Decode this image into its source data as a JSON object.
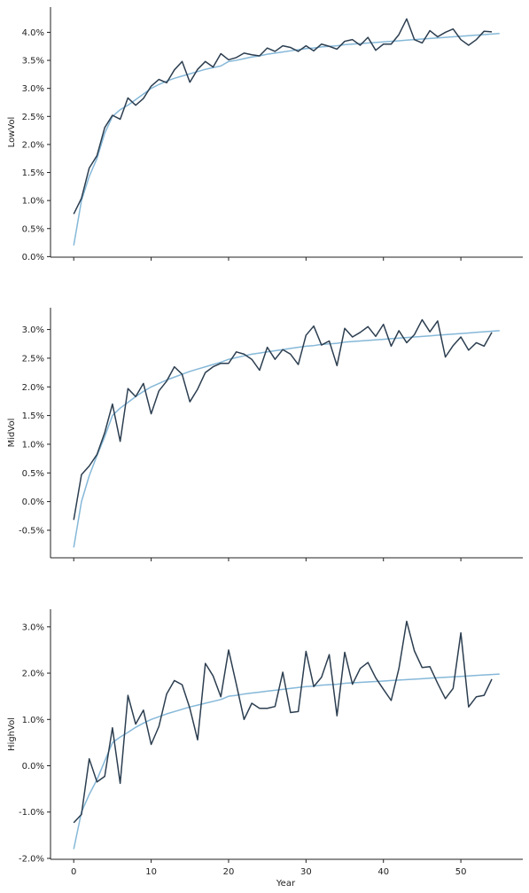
{
  "chart_data": [
    {
      "type": "line",
      "ylabel": "LowVol",
      "xlabel": "",
      "xlim": [
        -3,
        58
      ],
      "ylim": [
        -0.0001,
        0.0445
      ],
      "xticks": [
        0,
        10,
        20,
        30,
        40,
        50
      ],
      "yticks": [
        0.0,
        0.005,
        0.01,
        0.015,
        0.02,
        0.025,
        0.03,
        0.035,
        0.04
      ],
      "ytick_labels": [
        "0.0%",
        "0.5%",
        "1.0%",
        "1.5%",
        "2.0%",
        "2.5%",
        "3.0%",
        "3.5%",
        "4.0%"
      ],
      "series": [
        {
          "color": "#2c3e50",
          "x": [
            0,
            1,
            2,
            3,
            4,
            5,
            6,
            7,
            8,
            9,
            10,
            11,
            12,
            13,
            14,
            15,
            16,
            17,
            18,
            19,
            20,
            21,
            22,
            23,
            24,
            25,
            26,
            27,
            28,
            29,
            30,
            31,
            32,
            33,
            34,
            35,
            36,
            37,
            38,
            39,
            40,
            41,
            42,
            43,
            44,
            45,
            46,
            47,
            48,
            49,
            50,
            51,
            52,
            53,
            54
          ],
          "y": [
            0.0076,
            0.0104,
            0.0158,
            0.018,
            0.023,
            0.0252,
            0.0245,
            0.0283,
            0.027,
            0.0282,
            0.0304,
            0.0316,
            0.031,
            0.0333,
            0.0348,
            0.0311,
            0.0334,
            0.0348,
            0.0338,
            0.0362,
            0.0351,
            0.0355,
            0.0363,
            0.036,
            0.0358,
            0.0372,
            0.0366,
            0.0376,
            0.0373,
            0.0366,
            0.0376,
            0.0367,
            0.0379,
            0.0375,
            0.037,
            0.0384,
            0.0387,
            0.0377,
            0.0391,
            0.0368,
            0.0379,
            0.0379,
            0.0396,
            0.0424,
            0.0387,
            0.0381,
            0.0403,
            0.0392,
            0.04,
            0.0406,
            0.0387,
            0.0377,
            0.0387,
            0.0402,
            0.0401
          ]
        },
        {
          "color": "#85b8d8",
          "x": [
            0,
            1,
            2,
            3,
            4,
            5,
            6,
            7,
            8,
            9,
            10,
            11,
            12,
            13,
            14,
            15,
            16,
            17,
            18,
            19,
            20,
            21,
            22,
            23,
            24,
            25,
            26,
            27,
            28,
            29,
            30,
            31,
            32,
            33,
            34,
            35,
            36,
            37,
            38,
            39,
            40,
            41,
            42,
            43,
            44,
            45,
            46,
            47,
            48,
            49,
            50,
            51,
            52,
            53,
            54,
            55
          ],
          "y": [
            0.002,
            0.01,
            0.0143,
            0.0175,
            0.022,
            0.025,
            0.0262,
            0.027,
            0.028,
            0.029,
            0.03,
            0.0307,
            0.0313,
            0.0318,
            0.0322,
            0.0326,
            0.033,
            0.0334,
            0.0337,
            0.034,
            0.0348,
            0.035,
            0.0353,
            0.0356,
            0.0358,
            0.0361,
            0.0363,
            0.0365,
            0.0367,
            0.0369,
            0.0371,
            0.0372,
            0.0374,
            0.0375,
            0.0376,
            0.0378,
            0.0379,
            0.038,
            0.0381,
            0.0382,
            0.0383,
            0.0384,
            0.0385,
            0.0386,
            0.0387,
            0.0388,
            0.0389,
            0.039,
            0.0391,
            0.0392,
            0.0393,
            0.0394,
            0.0395,
            0.0396,
            0.0397,
            0.0398
          ]
        }
      ]
    },
    {
      "type": "line",
      "ylabel": "MidVol",
      "xlabel": "",
      "xlim": [
        -3,
        58
      ],
      "ylim": [
        -0.0098,
        0.0338
      ],
      "xticks": [
        0,
        10,
        20,
        30,
        40,
        50
      ],
      "yticks": [
        -0.005,
        0.0,
        0.005,
        0.01,
        0.015,
        0.02,
        0.025,
        0.03
      ],
      "ytick_labels": [
        "-0.5%",
        "0.0%",
        "0.5%",
        "1.0%",
        "1.5%",
        "2.0%",
        "2.5%",
        "3.0%"
      ],
      "series": [
        {
          "color": "#2c3e50",
          "x": [
            0,
            1,
            2,
            3,
            4,
            5,
            6,
            7,
            8,
            9,
            10,
            11,
            12,
            13,
            14,
            15,
            16,
            17,
            18,
            19,
            20,
            21,
            22,
            23,
            24,
            25,
            26,
            27,
            28,
            29,
            30,
            31,
            32,
            33,
            34,
            35,
            36,
            37,
            38,
            39,
            40,
            41,
            42,
            43,
            44,
            45,
            46,
            47,
            48,
            49,
            50,
            51,
            52,
            53,
            54
          ],
          "y": [
            -0.0032,
            0.0047,
            0.0062,
            0.0082,
            0.012,
            0.017,
            0.0105,
            0.0197,
            0.0183,
            0.0206,
            0.0153,
            0.0193,
            0.021,
            0.0235,
            0.0222,
            0.0174,
            0.0196,
            0.0225,
            0.0235,
            0.0241,
            0.0241,
            0.0261,
            0.0257,
            0.0248,
            0.0229,
            0.0269,
            0.0248,
            0.0265,
            0.0257,
            0.0239,
            0.029,
            0.0306,
            0.0273,
            0.028,
            0.0237,
            0.0302,
            0.0287,
            0.0295,
            0.0305,
            0.0288,
            0.0309,
            0.0271,
            0.0298,
            0.0277,
            0.0291,
            0.0317,
            0.0296,
            0.0315,
            0.0252,
            0.0272,
            0.0287,
            0.0264,
            0.0277,
            0.0271,
            0.0295
          ]
        },
        {
          "color": "#85b8d8",
          "x": [
            0,
            1,
            2,
            3,
            4,
            5,
            6,
            7,
            8,
            9,
            10,
            11,
            12,
            13,
            14,
            15,
            16,
            17,
            18,
            19,
            20,
            21,
            22,
            23,
            24,
            25,
            26,
            27,
            28,
            29,
            30,
            31,
            32,
            33,
            34,
            35,
            36,
            37,
            38,
            39,
            40,
            41,
            42,
            43,
            44,
            45,
            46,
            47,
            48,
            49,
            50,
            51,
            52,
            53,
            54,
            55
          ],
          "y": [
            -0.008,
            0.0,
            0.0045,
            0.008,
            0.0113,
            0.015,
            0.0163,
            0.0173,
            0.0183,
            0.0192,
            0.02,
            0.0206,
            0.0212,
            0.0217,
            0.0222,
            0.0227,
            0.0231,
            0.0235,
            0.0239,
            0.0243,
            0.0248,
            0.0251,
            0.0254,
            0.0257,
            0.0259,
            0.0261,
            0.0263,
            0.0265,
            0.0267,
            0.0269,
            0.0271,
            0.0272,
            0.0274,
            0.0275,
            0.0276,
            0.0278,
            0.0279,
            0.028,
            0.0281,
            0.0282,
            0.0283,
            0.0284,
            0.0285,
            0.0286,
            0.0287,
            0.0288,
            0.0289,
            0.029,
            0.0291,
            0.0292,
            0.0293,
            0.0294,
            0.0295,
            0.0296,
            0.0297,
            0.0298
          ]
        }
      ]
    },
    {
      "type": "line",
      "ylabel": "HighVol",
      "xlabel": "Year",
      "xlim": [
        -3,
        58
      ],
      "ylim": [
        -0.0202,
        0.0338
      ],
      "xticks": [
        0,
        10,
        20,
        30,
        40,
        50
      ],
      "xtick_labels": [
        "0",
        "10",
        "20",
        "30",
        "40",
        "50"
      ],
      "yticks": [
        -0.02,
        -0.01,
        0.0,
        0.01,
        0.02,
        0.03
      ],
      "ytick_labels": [
        "-2.0%",
        "-1.0%",
        "0.0%",
        "1.0%",
        "2.0%",
        "3.0%"
      ],
      "series": [
        {
          "color": "#2c3e50",
          "x": [
            0,
            1,
            2,
            3,
            4,
            5,
            6,
            7,
            8,
            9,
            10,
            11,
            12,
            13,
            14,
            15,
            16,
            17,
            18,
            19,
            20,
            21,
            22,
            23,
            24,
            25,
            26,
            27,
            28,
            29,
            30,
            31,
            32,
            33,
            34,
            35,
            36,
            37,
            38,
            39,
            40,
            41,
            42,
            43,
            44,
            45,
            46,
            47,
            48,
            49,
            50,
            51,
            52,
            53,
            54
          ],
          "y": [
            -0.0123,
            -0.0105,
            0.0015,
            -0.0035,
            -0.0023,
            0.0082,
            -0.0038,
            0.0152,
            0.009,
            0.012,
            0.0046,
            0.0085,
            0.0155,
            0.0184,
            0.0175,
            0.0124,
            0.0056,
            0.0221,
            0.0194,
            0.0149,
            0.025,
            0.0176,
            0.01,
            0.0135,
            0.0124,
            0.0124,
            0.0128,
            0.0202,
            0.0115,
            0.0117,
            0.0247,
            0.0171,
            0.0191,
            0.024,
            0.0108,
            0.0245,
            0.0176,
            0.021,
            0.0223,
            0.019,
            0.0165,
            0.0141,
            0.021,
            0.0312,
            0.0248,
            0.0212,
            0.0214,
            0.0178,
            0.0145,
            0.0167,
            0.0287,
            0.0127,
            0.0149,
            0.0152,
            0.0187
          ]
        },
        {
          "color": "#85b8d8",
          "x": [
            0,
            1,
            2,
            3,
            4,
            5,
            6,
            7,
            8,
            9,
            10,
            11,
            12,
            13,
            14,
            15,
            16,
            17,
            18,
            19,
            20,
            21,
            22,
            23,
            24,
            25,
            26,
            27,
            28,
            29,
            30,
            31,
            32,
            33,
            34,
            35,
            36,
            37,
            38,
            39,
            40,
            41,
            42,
            43,
            44,
            45,
            46,
            47,
            48,
            49,
            50,
            51,
            52,
            53,
            54,
            55
          ],
          "y": [
            -0.018,
            -0.01,
            -0.0062,
            -0.003,
            0.001,
            0.005,
            0.0062,
            0.0072,
            0.0083,
            0.0092,
            0.01,
            0.0106,
            0.0112,
            0.0117,
            0.0122,
            0.0127,
            0.0131,
            0.0135,
            0.0139,
            0.0143,
            0.015,
            0.0152,
            0.0155,
            0.0157,
            0.0159,
            0.0161,
            0.0163,
            0.0165,
            0.0167,
            0.0169,
            0.0171,
            0.0172,
            0.0174,
            0.0175,
            0.0176,
            0.0178,
            0.0179,
            0.018,
            0.0181,
            0.0182,
            0.0183,
            0.0184,
            0.0185,
            0.0186,
            0.0187,
            0.0188,
            0.0189,
            0.019,
            0.0191,
            0.0192,
            0.0193,
            0.0194,
            0.0195,
            0.0196,
            0.0197,
            0.0198
          ]
        }
      ]
    }
  ]
}
